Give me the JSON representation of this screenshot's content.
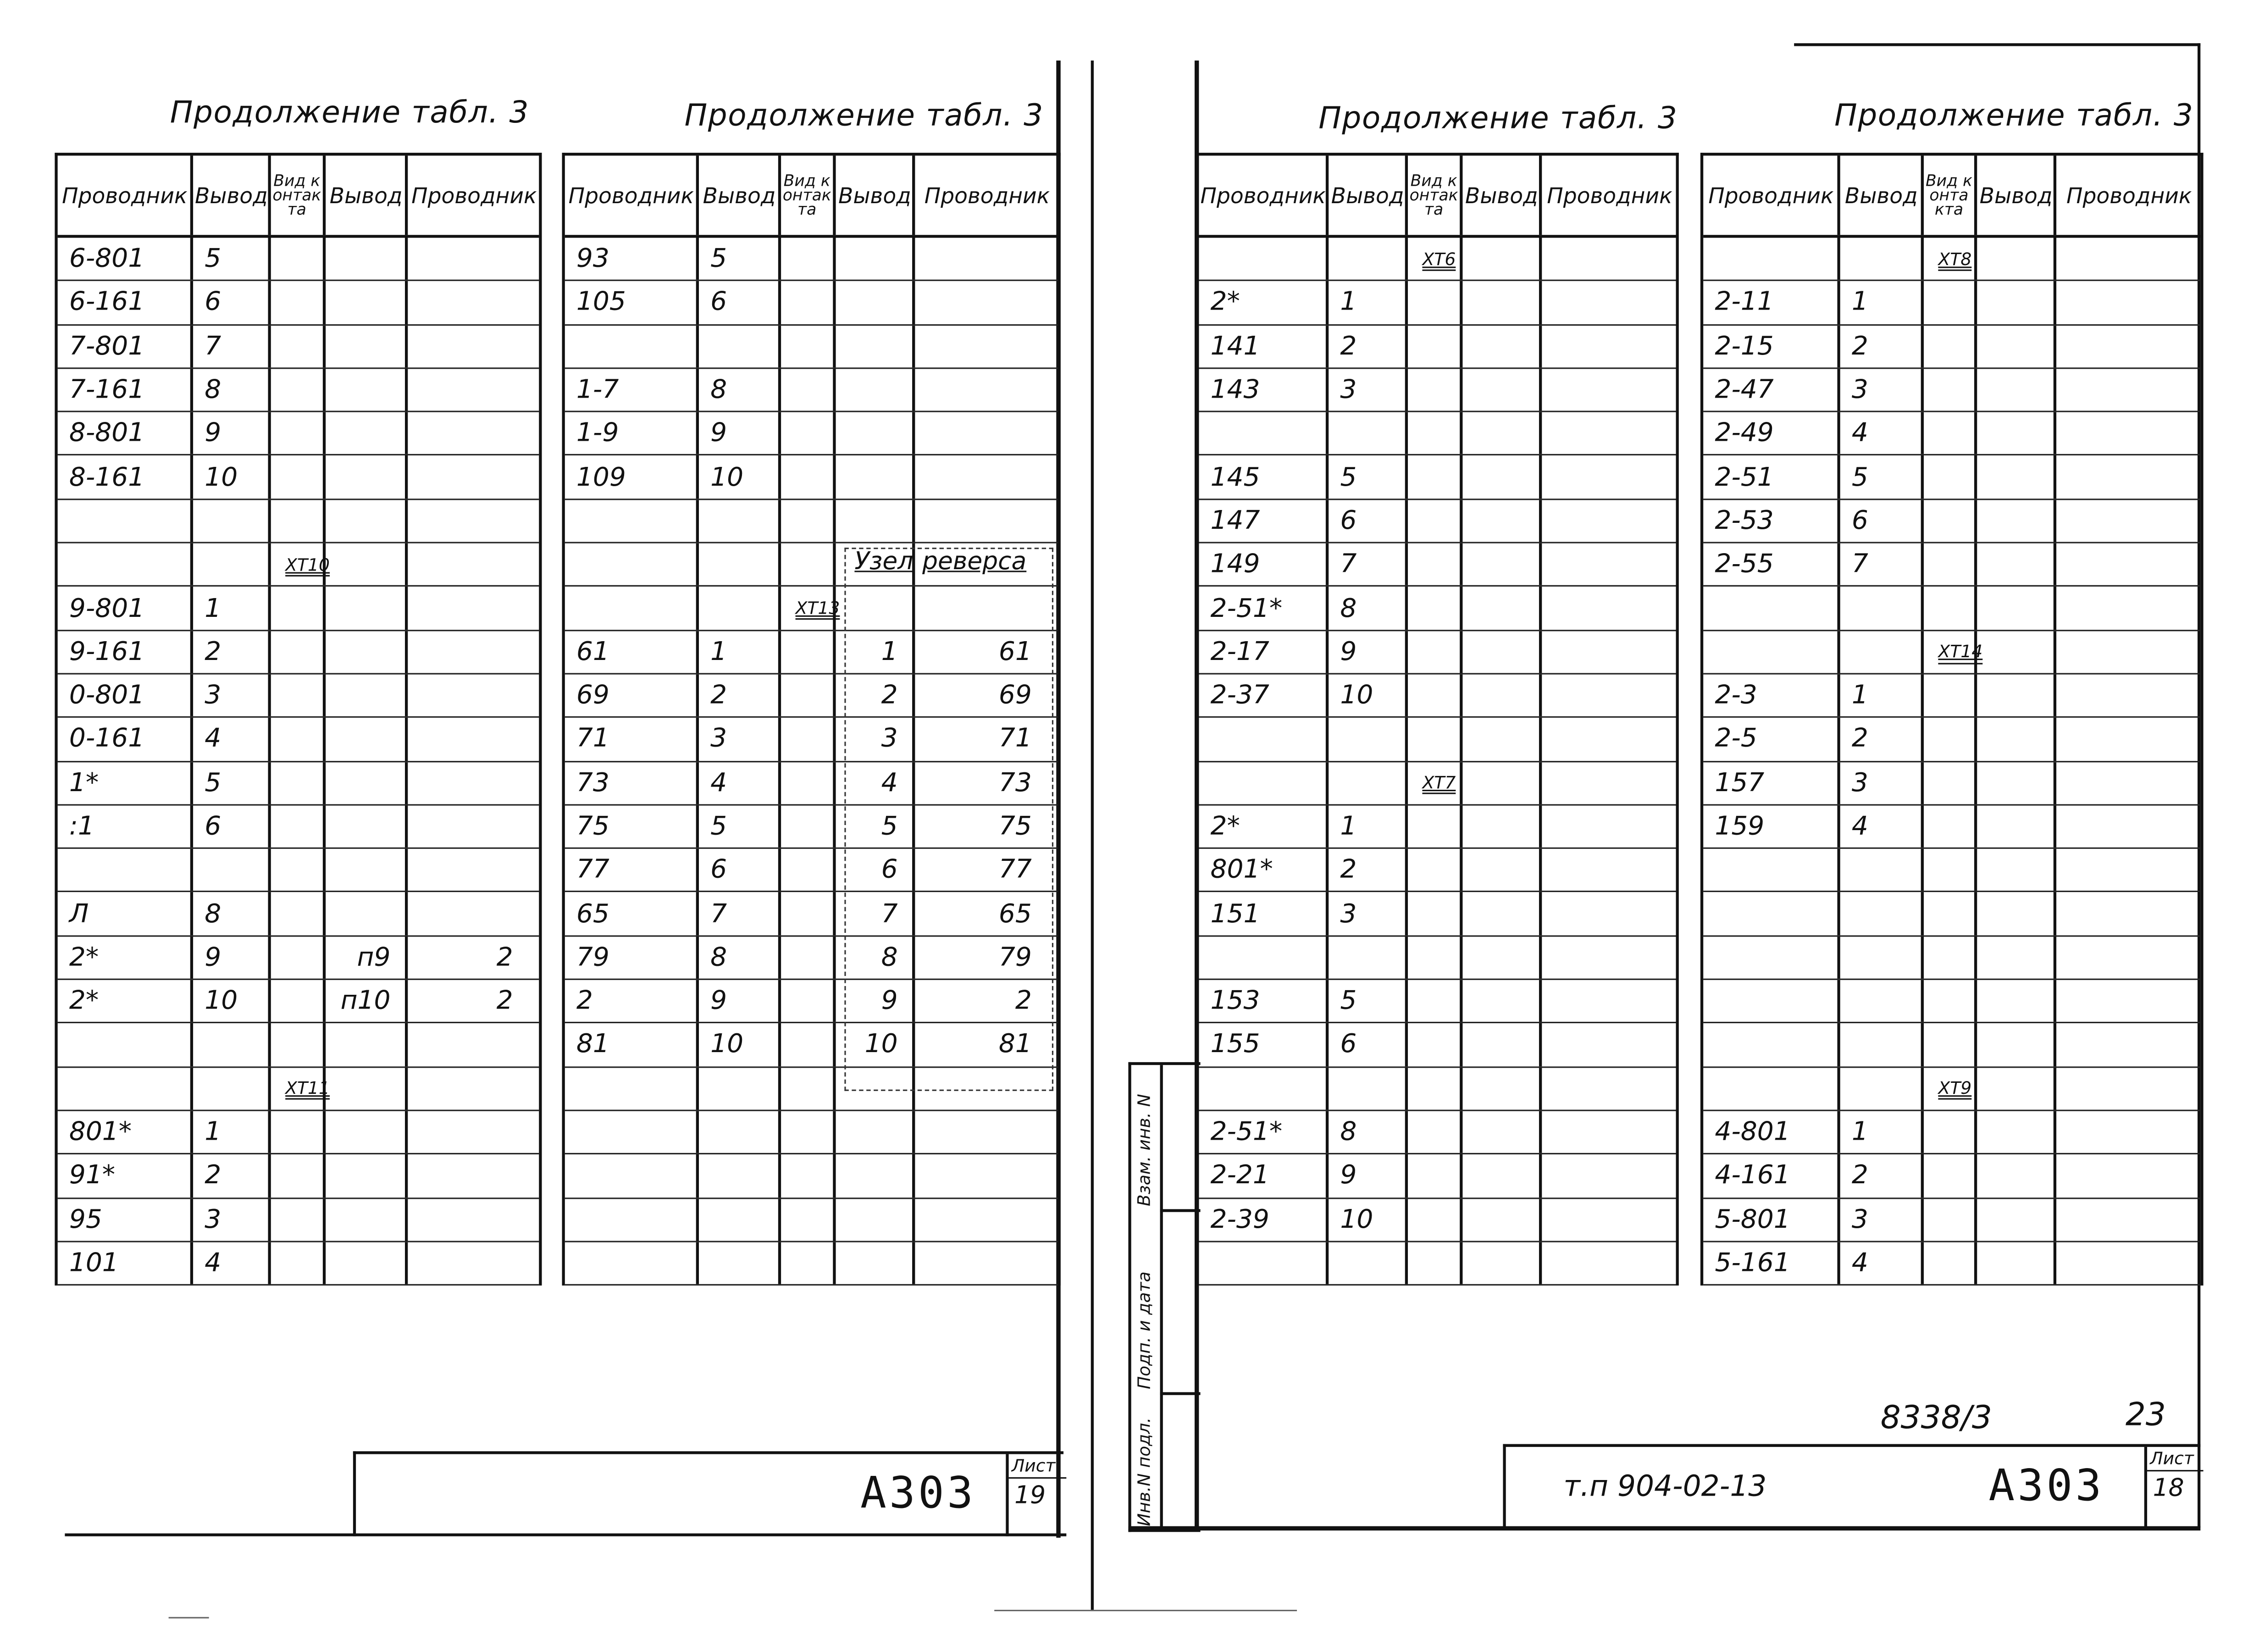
{
  "headers": [
    "Проводник",
    "Вывод",
    "Вид контакта",
    "Вывод",
    "Проводник"
  ],
  "tables": [
    {
      "title": "Продолжение табл. 3",
      "rows": [
        [
          "6-801",
          "5",
          "",
          "",
          ""
        ],
        [
          "6-161",
          "6",
          "",
          "",
          ""
        ],
        [
          "7-801",
          "7",
          "",
          "",
          ""
        ],
        [
          "7-161",
          "8",
          "",
          "",
          ""
        ],
        [
          "8-801",
          "9",
          "",
          "",
          ""
        ],
        [
          "8-161",
          "10",
          "",
          "",
          ""
        ],
        [
          "",
          "",
          "",
          "",
          ""
        ],
        [
          "",
          "",
          "ХТ10",
          "",
          ""
        ],
        [
          "9-801",
          "1",
          "",
          "",
          ""
        ],
        [
          "9-161",
          "2",
          "",
          "",
          ""
        ],
        [
          "0-801",
          "3",
          "",
          "",
          ""
        ],
        [
          "0-161",
          "4",
          "",
          "",
          ""
        ],
        [
          "1*",
          "5",
          "",
          "",
          ""
        ],
        [
          ":1",
          "6",
          "",
          "",
          ""
        ],
        [
          "",
          "",
          "",
          "",
          ""
        ],
        [
          "Л",
          "8",
          "",
          "",
          ""
        ],
        [
          "2*",
          "9",
          "",
          "п9",
          "2"
        ],
        [
          "2*",
          "10",
          "",
          "п10",
          "2"
        ],
        [
          "",
          "",
          "",
          "",
          ""
        ],
        [
          "",
          "",
          "ХТ11",
          "",
          ""
        ],
        [
          "801*",
          "1",
          "",
          "",
          ""
        ],
        [
          "91*",
          "2",
          "",
          "",
          ""
        ],
        [
          "95",
          "3",
          "",
          "",
          ""
        ],
        [
          "101",
          "4",
          "",
          "",
          ""
        ]
      ]
    },
    {
      "title": "Продолжение табл. 3",
      "reverse_label": [
        "Узел",
        "реверса"
      ],
      "rows": [
        [
          "93",
          "5",
          "",
          "",
          ""
        ],
        [
          "105",
          "6",
          "",
          "",
          ""
        ],
        [
          "",
          "",
          "",
          "",
          ""
        ],
        [
          "1-7",
          "8",
          "",
          "",
          ""
        ],
        [
          "1-9",
          "9",
          "",
          "",
          ""
        ],
        [
          "109",
          "10",
          "",
          "",
          ""
        ],
        [
          "",
          "",
          "",
          "",
          ""
        ],
        [
          "",
          "",
          "",
          "",
          ""
        ],
        [
          "",
          "",
          "ХТ13",
          "",
          ""
        ],
        [
          "61",
          "1",
          "",
          "1",
          "61"
        ],
        [
          "69",
          "2",
          "",
          "2",
          "69"
        ],
        [
          "71",
          "3",
          "",
          "3",
          "71"
        ],
        [
          "73",
          "4",
          "",
          "4",
          "73"
        ],
        [
          "75",
          "5",
          "",
          "5",
          "75"
        ],
        [
          "77",
          "6",
          "",
          "6",
          "77"
        ],
        [
          "65",
          "7",
          "",
          "7",
          "65"
        ],
        [
          "79",
          "8",
          "",
          "8",
          "79"
        ],
        [
          "2",
          "9",
          "",
          "9",
          "2"
        ],
        [
          "81",
          "10",
          "",
          "10",
          "81"
        ],
        [
          "",
          "",
          "",
          "",
          ""
        ],
        [
          "",
          "",
          "",
          "",
          ""
        ],
        [
          "",
          "",
          "",
          "",
          ""
        ],
        [
          "",
          "",
          "",
          "",
          ""
        ],
        [
          "",
          "",
          "",
          "",
          ""
        ]
      ]
    },
    {
      "title": "Продолжение табл. 3",
      "rows": [
        [
          "",
          "",
          "ХТ6",
          "",
          ""
        ],
        [
          "2*",
          "1",
          "",
          "",
          ""
        ],
        [
          "141",
          "2",
          "",
          "",
          ""
        ],
        [
          "143",
          "3",
          "",
          "",
          ""
        ],
        [
          "",
          "",
          "",
          "",
          ""
        ],
        [
          "145",
          "5",
          "",
          "",
          ""
        ],
        [
          "147",
          "6",
          "",
          "",
          ""
        ],
        [
          "149",
          "7",
          "",
          "",
          ""
        ],
        [
          "2-51*",
          "8",
          "",
          "",
          ""
        ],
        [
          "2-17",
          "9",
          "",
          "",
          ""
        ],
        [
          "2-37",
          "10",
          "",
          "",
          ""
        ],
        [
          "",
          "",
          "",
          "",
          ""
        ],
        [
          "",
          "",
          "ХТ7",
          "",
          ""
        ],
        [
          "2*",
          "1",
          "",
          "",
          ""
        ],
        [
          "801*",
          "2",
          "",
          "",
          ""
        ],
        [
          "151",
          "3",
          "",
          "",
          ""
        ],
        [
          "",
          "",
          "",
          "",
          ""
        ],
        [
          "153",
          "5",
          "",
          "",
          ""
        ],
        [
          "155",
          "6",
          "",
          "",
          ""
        ],
        [
          "",
          "",
          "",
          "",
          ""
        ],
        [
          "2-51*",
          "8",
          "",
          "",
          ""
        ],
        [
          "2-21",
          "9",
          "",
          "",
          ""
        ],
        [
          "2-39",
          "10",
          "",
          "",
          ""
        ],
        [
          "",
          "",
          "",
          "",
          ""
        ]
      ]
    },
    {
      "title": "Продолжение табл. 3",
      "rows": [
        [
          "",
          "",
          "ХТ8",
          "",
          ""
        ],
        [
          "2-11",
          "1",
          "",
          "",
          ""
        ],
        [
          "2-15",
          "2",
          "",
          "",
          ""
        ],
        [
          "2-47",
          "3",
          "",
          "",
          ""
        ],
        [
          "2-49",
          "4",
          "",
          "",
          ""
        ],
        [
          "2-51",
          "5",
          "",
          "",
          ""
        ],
        [
          "2-53",
          "6",
          "",
          "",
          ""
        ],
        [
          "2-55",
          "7",
          "",
          "",
          ""
        ],
        [
          "",
          "",
          "",
          "",
          ""
        ],
        [
          "",
          "",
          "ХТ14",
          "",
          ""
        ],
        [
          "2-3",
          "1",
          "",
          "",
          ""
        ],
        [
          "2-5",
          "2",
          "",
          "",
          ""
        ],
        [
          "157",
          "3",
          "",
          "",
          ""
        ],
        [
          "159",
          "4",
          "",
          "",
          ""
        ],
        [
          "",
          "",
          "",
          "",
          ""
        ],
        [
          "",
          "",
          "",
          "",
          ""
        ],
        [
          "",
          "",
          "",
          "",
          ""
        ],
        [
          "",
          "",
          "",
          "",
          ""
        ],
        [
          "",
          "",
          "",
          "",
          ""
        ],
        [
          "",
          "",
          "ХТ9",
          "",
          ""
        ],
        [
          "4-801",
          "1",
          "",
          "",
          ""
        ],
        [
          "4-161",
          "2",
          "",
          "",
          ""
        ],
        [
          "5-801",
          "3",
          "",
          "",
          ""
        ],
        [
          "5-161",
          "4",
          "",
          "",
          ""
        ]
      ]
    }
  ],
  "left_stamp": {
    "code": "А303",
    "sheet_label": "Лист",
    "sheet_number": "19"
  },
  "right_stamp": {
    "project": "т.п 904-02-13",
    "code": "А303",
    "sheet_label": "Лист",
    "sheet_number": "18"
  },
  "archive_number": "8338/3",
  "archive_page": "23",
  "side_strip": {
    "inv_orig": "Инв.N подл.",
    "sign_date": "Подп. и дата",
    "replace_inv": "Взам. инв. N"
  }
}
